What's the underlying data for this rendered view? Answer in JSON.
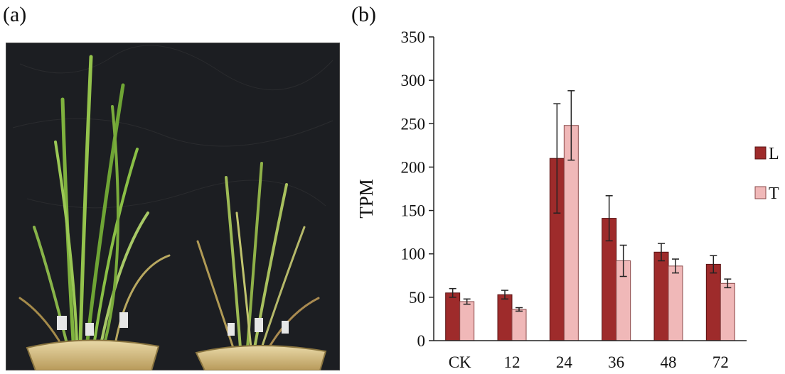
{
  "panel_a": {
    "label": "(a)",
    "image": "photo of two potted plant groups: taller green seedlings on the left, shorter yellowing seedlings on the right, against a dark cloth backdrop"
  },
  "panel_b": {
    "label": "(b)"
  },
  "colors": {
    "L": "#9e2b2b",
    "T": "#f0b8b8",
    "L_stroke": "#5a1414",
    "T_stroke": "#8a4a4a"
  },
  "chart_data": {
    "type": "bar",
    "title": "",
    "xlabel": "",
    "ylabel": "TPM",
    "ylim": [
      0,
      350
    ],
    "yticks": [
      0,
      50,
      100,
      150,
      200,
      250,
      300,
      350
    ],
    "categories": [
      "CK",
      "12",
      "24",
      "36",
      "48",
      "72"
    ],
    "series": [
      {
        "name": "L",
        "values": [
          55,
          53,
          210,
          141,
          102,
          88
        ],
        "errors": [
          5,
          5,
          63,
          26,
          10,
          10
        ]
      },
      {
        "name": "T",
        "values": [
          45,
          36,
          248,
          92,
          86,
          66
        ],
        "errors": [
          3,
          2,
          40,
          18,
          8,
          5
        ]
      }
    ],
    "legend": [
      "L",
      "T"
    ],
    "legend_position": "right"
  }
}
